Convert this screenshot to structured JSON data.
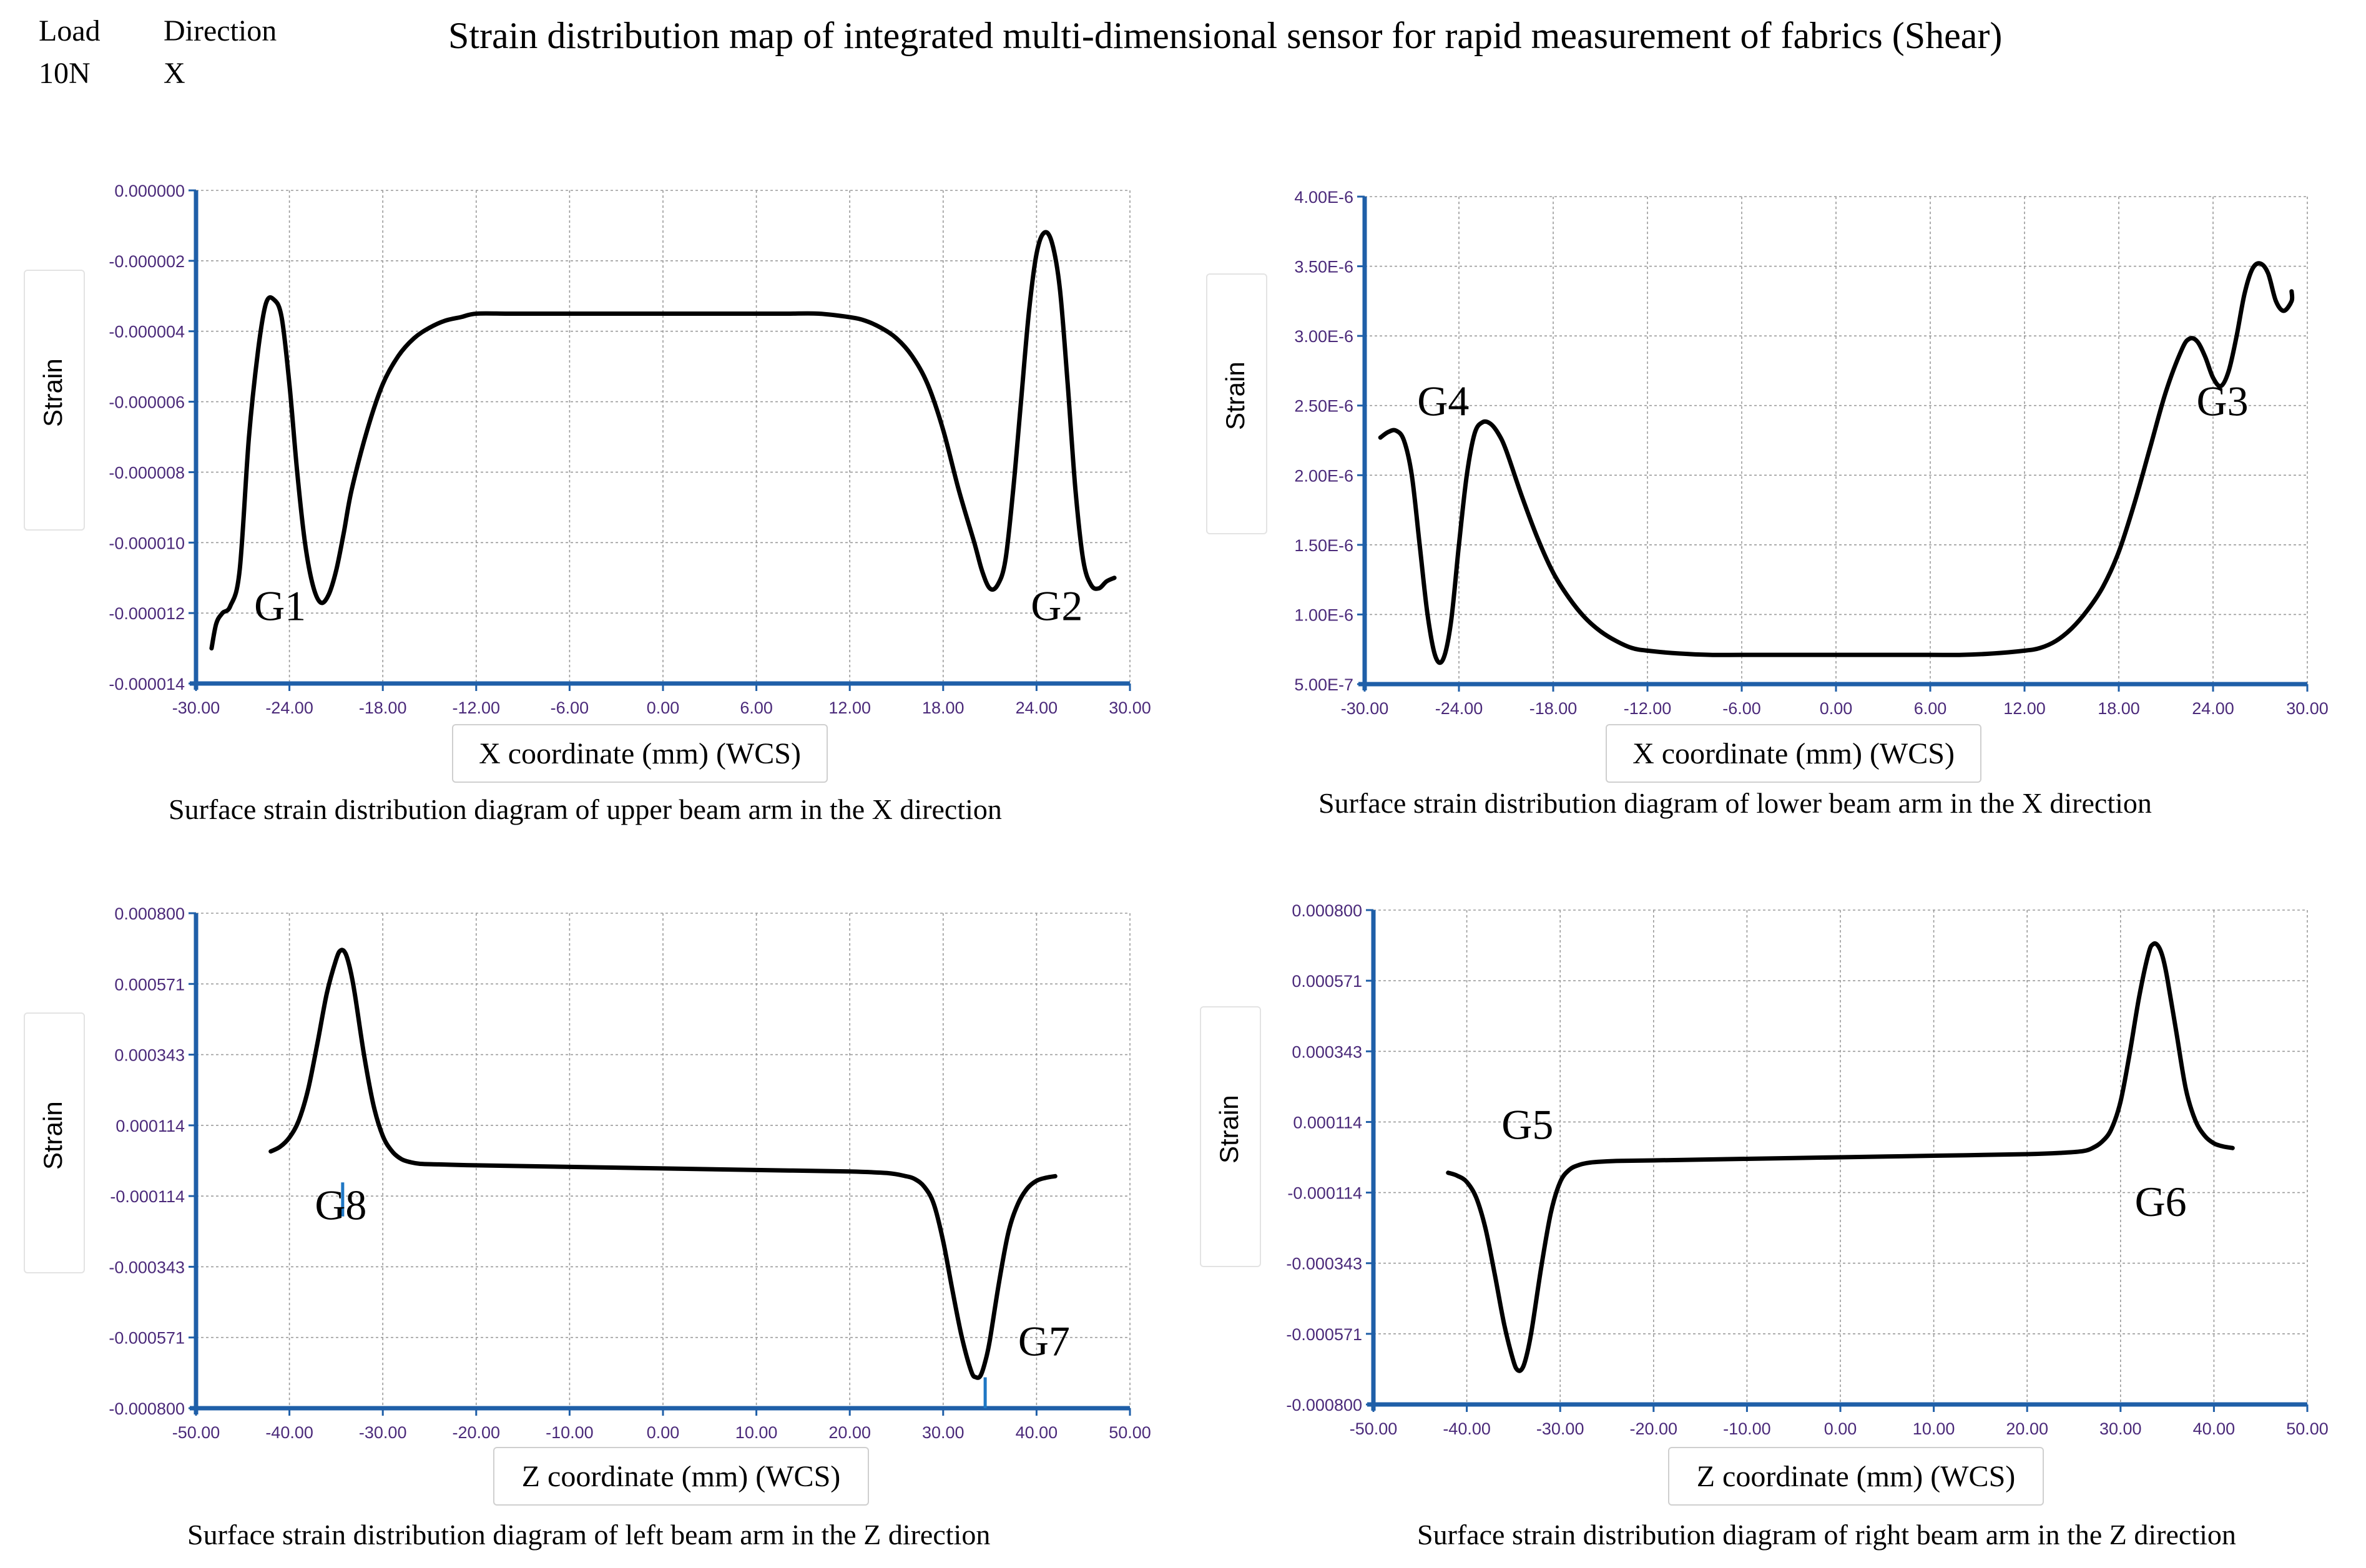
{
  "header": {
    "load_label": "Load",
    "load_value": "10N",
    "direction_label": "Direction",
    "direction_value": "X",
    "title": "Strain distribution map of integrated multi-dimensional sensor for rapid measurement of fabrics (Shear)"
  },
  "colors": {
    "tick": "#4b2a7a",
    "axis": "#1f5fa8",
    "grid": "#9a9a9a",
    "line": "#000000",
    "marker": "#1f77c4"
  },
  "chart_data": [
    {
      "type": "line",
      "caption": "Surface strain distribution diagram of upper beam arm in the X direction",
      "xlabel": "X coordinate (mm) (WCS)",
      "ylabel": "Strain",
      "xlim": [
        -30,
        30
      ],
      "ylim": [
        -1.4e-05,
        0
      ],
      "x_ticks": [
        "-30.00",
        "-24.00",
        "-18.00",
        "-12.00",
        "-6.00",
        "0.00",
        "6.00",
        "12.00",
        "18.00",
        "24.00",
        "30.00"
      ],
      "y_ticks": [
        "0.000000",
        "-0.000002",
        "-0.000004",
        "-0.000006",
        "-0.000008",
        "-0.000010",
        "-0.000012",
        "-0.000014"
      ],
      "series": [
        {
          "name": "strain",
          "x": [
            -29,
            -28.7,
            -28.3,
            -27.8,
            -27.2,
            -26.6,
            -26,
            -25.5,
            -25,
            -24.5,
            -24,
            -23.5,
            -23,
            -22.5,
            -22,
            -21.5,
            -21,
            -20.5,
            -20,
            -19,
            -18,
            -17,
            -16,
            -15,
            -14,
            -13,
            -12,
            -10,
            -8,
            -6,
            -3,
            0,
            3,
            6,
            8,
            10,
            12,
            13,
            14,
            15,
            16,
            17,
            18,
            19,
            20,
            20.5,
            21,
            21.5,
            22,
            22.5,
            23,
            23.5,
            24,
            24.5,
            25,
            25.5,
            26,
            26.5,
            27,
            27.5,
            28,
            28.5,
            29
          ],
          "y": [
            -1.3e-05,
            -1.23e-05,
            -1.2e-05,
            -1.18e-05,
            -1.08e-05,
            -7e-06,
            -4.5e-06,
            -3.2e-06,
            -3.1e-06,
            -3.6e-06,
            -5.5e-06,
            -8e-06,
            -1e-05,
            -1.12e-05,
            -1.17e-05,
            -1.15e-05,
            -1.08e-05,
            -9.7e-06,
            -8.5e-06,
            -6.8e-06,
            -5.5e-06,
            -4.7e-06,
            -4.2e-06,
            -3.9e-06,
            -3.7e-06,
            -3.6e-06,
            -3.5e-06,
            -3.5e-06,
            -3.5e-06,
            -3.5e-06,
            -3.5e-06,
            -3.5e-06,
            -3.5e-06,
            -3.5e-06,
            -3.5e-06,
            -3.5e-06,
            -3.6e-06,
            -3.7e-06,
            -3.9e-06,
            -4.2e-06,
            -4.7e-06,
            -5.5e-06,
            -6.8e-06,
            -8.5e-06,
            -1e-05,
            -1.08e-05,
            -1.13e-05,
            -1.12e-05,
            -1.05e-05,
            -8.5e-06,
            -6e-06,
            -3.5e-06,
            -1.8e-06,
            -1.2e-06,
            -1.5e-06,
            -2.8e-06,
            -5.5e-06,
            -8.5e-06,
            -1.05e-05,
            -1.12e-05,
            -1.13e-05,
            -1.11e-05,
            -1.1e-05
          ]
        }
      ],
      "annotations": [
        {
          "text": "G1",
          "x": -24.6,
          "y": -1.22e-05
        },
        {
          "text": "G2",
          "x": 25.3,
          "y": -1.22e-05
        }
      ]
    },
    {
      "type": "line",
      "caption": "Surface strain distribution diagram of lower beam arm in the X direction",
      "xlabel": "X coordinate (mm) (WCS)",
      "ylabel": "Strain",
      "xlim": [
        -30,
        30
      ],
      "ylim": [
        5e-07,
        4e-06
      ],
      "x_ticks": [
        "-30.00",
        "-24.00",
        "-18.00",
        "-12.00",
        "-6.00",
        "0.00",
        "6.00",
        "12.00",
        "18.00",
        "24.00",
        "30.00"
      ],
      "y_ticks": [
        "4.00E-6",
        "3.50E-6",
        "3.00E-6",
        "2.50E-6",
        "2.00E-6",
        "1.50E-6",
        "1.00E-6",
        "5.00E-7"
      ],
      "series": [
        {
          "name": "strain",
          "x": [
            -29,
            -28.5,
            -28,
            -27.5,
            -27,
            -26.5,
            -26,
            -25.5,
            -25,
            -24.5,
            -24,
            -23.5,
            -23,
            -22.5,
            -22,
            -21.5,
            -21,
            -20,
            -19,
            -18,
            -17,
            -16,
            -15,
            -14,
            -13,
            -12,
            -10,
            -8,
            -6,
            -3,
            0,
            3,
            6,
            8,
            10,
            12,
            13,
            14,
            15,
            16,
            17,
            18,
            19,
            20,
            21,
            22,
            22.5,
            23,
            23.5,
            24,
            24.5,
            25,
            25.5,
            26,
            26.5,
            27,
            27.5,
            28,
            28.5,
            29,
            29
          ],
          "y": [
            2.27e-06,
            2.31e-06,
            2.32e-06,
            2.25e-06,
            2e-06,
            1.5e-06,
            1e-06,
            7e-07,
            6.8e-07,
            9.5e-07,
            1.5e-06,
            2e-06,
            2.3e-06,
            2.38e-06,
            2.37e-06,
            2.3e-06,
            2.18e-06,
            1.85e-06,
            1.55e-06,
            1.3e-06,
            1.12e-06,
            9.8e-07,
            8.8e-07,
            8.1e-07,
            7.6e-07,
            7.4e-07,
            7.2e-07,
            7.1e-07,
            7.1e-07,
            7.1e-07,
            7.1e-07,
            7.1e-07,
            7.1e-07,
            7.1e-07,
            7.2e-07,
            7.4e-07,
            7.6e-07,
            8.1e-07,
            9e-07,
            1.03e-06,
            1.2e-06,
            1.45e-06,
            1.8e-06,
            2.2e-06,
            2.6e-06,
            2.9e-06,
            2.98e-06,
            2.96e-06,
            2.85e-06,
            2.7e-06,
            2.64e-06,
            2.75e-06,
            3e-06,
            3.3e-06,
            3.48e-06,
            3.52e-06,
            3.45e-06,
            3.25e-06,
            3.18e-06,
            3.25e-06,
            3.32e-06
          ]
        }
      ],
      "annotations": [
        {
          "text": "G4",
          "x": -25,
          "y": 2.43e-06
        },
        {
          "text": "G3",
          "x": 24.6,
          "y": 2.43e-06
        }
      ]
    },
    {
      "type": "line",
      "caption": "Surface strain distribution diagram of left beam arm in the Z direction",
      "xlabel": "Z coordinate (mm) (WCS)",
      "ylabel": "Strain",
      "xlim": [
        -50,
        50
      ],
      "ylim": [
        -0.0008,
        0.0008
      ],
      "x_ticks": [
        "-50.00",
        "-40.00",
        "-30.00",
        "-20.00",
        "-10.00",
        "0.00",
        "10.00",
        "20.00",
        "30.00",
        "40.00",
        "50.00"
      ],
      "y_ticks": [
        "0.000800",
        "0.000571",
        "0.000343",
        "0.000114",
        "-0.000114",
        "-0.000343",
        "-0.000571",
        "-0.000800"
      ],
      "series": [
        {
          "name": "strain",
          "x": [
            -42,
            -41,
            -40,
            -39,
            -38,
            -37,
            -36,
            -35,
            -34.5,
            -34,
            -33.5,
            -33,
            -32,
            -31,
            -30,
            -29,
            -28,
            -27,
            -26,
            -24,
            -20,
            -10,
            0,
            10,
            20,
            24,
            26,
            27,
            28,
            29,
            30,
            31,
            32,
            33,
            33.5,
            34,
            34.5,
            35,
            36,
            37,
            38,
            39,
            40,
            41,
            42
          ],
          "y": [
            3e-05,
            4.5e-05,
            7.5e-05,
            0.00013,
            0.00023,
            0.00038,
            0.00054,
            0.00065,
            0.00068,
            0.00067,
            0.00062,
            0.00054,
            0.00034,
            0.00018,
            8e-05,
            3e-05,
            5e-06,
            -5e-06,
            -1e-05,
            -1.2e-05,
            -1.5e-05,
            -2e-05,
            -2.5e-05,
            -3e-05,
            -3.5e-05,
            -4e-05,
            -5e-05,
            -6e-05,
            -8.5e-05,
            -0.00014,
            -0.00026,
            -0.00042,
            -0.00057,
            -0.00068,
            -0.0007,
            -0.000695,
            -0.00065,
            -0.00058,
            -0.00039,
            -0.00023,
            -0.00014,
            -9e-05,
            -6.5e-05,
            -5.5e-05,
            -5e-05
          ]
        }
      ],
      "annotations": [
        {
          "text": "G8",
          "x": -34.5,
          "y": -0.00019
        },
        {
          "text": "G7",
          "x": 40.8,
          "y": -0.00063
        }
      ],
      "markers": [
        {
          "x": -34.3,
          "y1": -7e-05,
          "y2": -0.00018
        },
        {
          "x": 34.5,
          "y1": -0.0007,
          "y2": -0.0008
        }
      ]
    },
    {
      "type": "line",
      "caption": "Surface strain distribution diagram of right beam arm in the Z direction",
      "xlabel": "Z coordinate (mm) (WCS)",
      "ylabel": "Strain",
      "xlim": [
        -50,
        50
      ],
      "ylim": [
        -0.0008,
        0.0008
      ],
      "x_ticks": [
        "-50.00",
        "-40.00",
        "-30.00",
        "-20.00",
        "-10.00",
        "0.00",
        "10.00",
        "20.00",
        "30.00",
        "40.00",
        "50.00"
      ],
      "y_ticks": [
        "0.000800",
        "0.000571",
        "0.000343",
        "0.000114",
        "-0.000114",
        "-0.000343",
        "-0.000571",
        "-0.000800"
      ],
      "series": [
        {
          "name": "strain",
          "x": [
            -42,
            -41,
            -40,
            -39,
            -38,
            -37,
            -36,
            -35,
            -34.5,
            -34,
            -33.5,
            -33,
            -32,
            -31,
            -30,
            -29,
            -28,
            -27,
            -26,
            -24,
            -20,
            -10,
            0,
            10,
            20,
            24,
            26,
            27,
            28,
            29,
            30,
            31,
            32,
            33,
            33.5,
            34,
            34.5,
            35,
            36,
            37,
            38,
            39,
            40,
            41,
            42
          ],
          "y": [
            -5e-05,
            -6e-05,
            -8e-05,
            -0.00013,
            -0.00023,
            -0.00038,
            -0.00054,
            -0.00066,
            -0.00069,
            -0.00068,
            -0.00063,
            -0.00055,
            -0.00035,
            -0.00018,
            -8e-05,
            -4e-05,
            -2.5e-05,
            -1.8e-05,
            -1.5e-05,
            -1.2e-05,
            -1e-05,
            -5e-06,
            0.0,
            5e-06,
            1e-05,
            1.5e-05,
            2e-05,
            3e-05,
            5e-05,
            9e-05,
            0.00018,
            0.00034,
            0.00052,
            0.00066,
            0.00069,
            0.000685,
            0.00065,
            0.00058,
            0.0004,
            0.00022,
            0.00012,
            7e-05,
            4.5e-05,
            3.5e-05,
            3e-05
          ]
        }
      ],
      "annotations": [
        {
          "text": "G5",
          "x": -33.5,
          "y": 6e-05
        },
        {
          "text": "G6",
          "x": 34.3,
          "y": -0.00019
        }
      ]
    }
  ]
}
